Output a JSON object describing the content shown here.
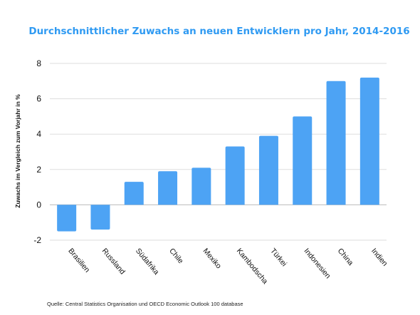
{
  "colors": {
    "bar": "#4da3f4",
    "title": "#2f9af2",
    "grid": "#dddddd",
    "zero": "#bbbbbb"
  },
  "chart_data": {
    "type": "bar",
    "title": "Durchschnittlicher Zuwachs an neuen Entwicklern pro Jahr, 2014-2016",
    "ylabel": "Zuwachs im Vergleich zum Vorjahr in %",
    "xlabel": "",
    "categories": [
      "Brasilien",
      "Russland",
      "Südafrika",
      "Chile",
      "Mexiko",
      "Kambodscha",
      "Türkei",
      "Indonesien",
      "China",
      "Indien"
    ],
    "values": [
      -1.5,
      -1.4,
      1.3,
      1.9,
      2.1,
      3.3,
      3.9,
      5.0,
      7.0,
      7.2
    ],
    "ylim": [
      -2,
      8
    ],
    "yticks": [
      -2,
      0,
      2,
      4,
      6,
      8
    ],
    "grid": true,
    "legend": "none"
  },
  "source": "Quelle: Central Statistics Organisation und OECD Economic Outlook 100 database"
}
